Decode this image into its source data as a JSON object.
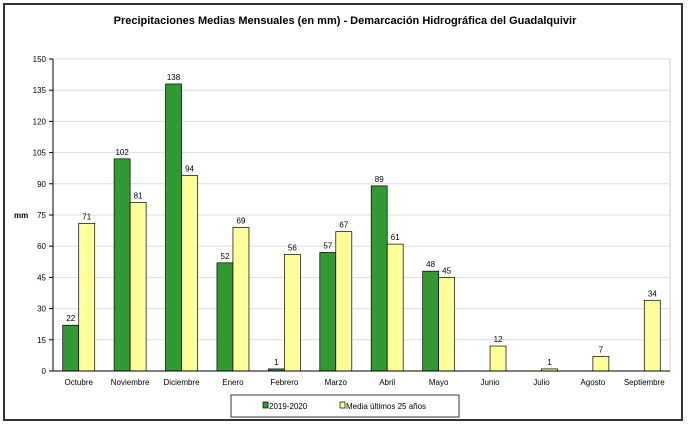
{
  "chart_data": {
    "type": "bar",
    "title": "Precipitaciones Medias Mensuales (en mm) - Demarcación Hidrográfica del Guadalquivir",
    "xlabel": "",
    "ylabel": "mm",
    "ylim": [
      0,
      150
    ],
    "yticks": [
      0,
      15,
      30,
      45,
      60,
      75,
      90,
      105,
      120,
      135,
      150
    ],
    "grid": true,
    "legend": "bottom",
    "categories": [
      "Octubre",
      "Noviembre",
      "Diciembre",
      "Enero",
      "Febrero",
      "Marzo",
      "Abril",
      "Mayo",
      "Junio",
      "Julio",
      "Agosto",
      "Septiembre"
    ],
    "series": [
      {
        "name": "2019-2020",
        "color": "#339933",
        "values": [
          22,
          102,
          138,
          52,
          1,
          57,
          89,
          48,
          null,
          null,
          null,
          null
        ]
      },
      {
        "name": "Media últimos 25 años",
        "color": "#FFFF99",
        "values": [
          71,
          81,
          94,
          69,
          56,
          67,
          61,
          45,
          12,
          1,
          7,
          34
        ]
      }
    ]
  }
}
